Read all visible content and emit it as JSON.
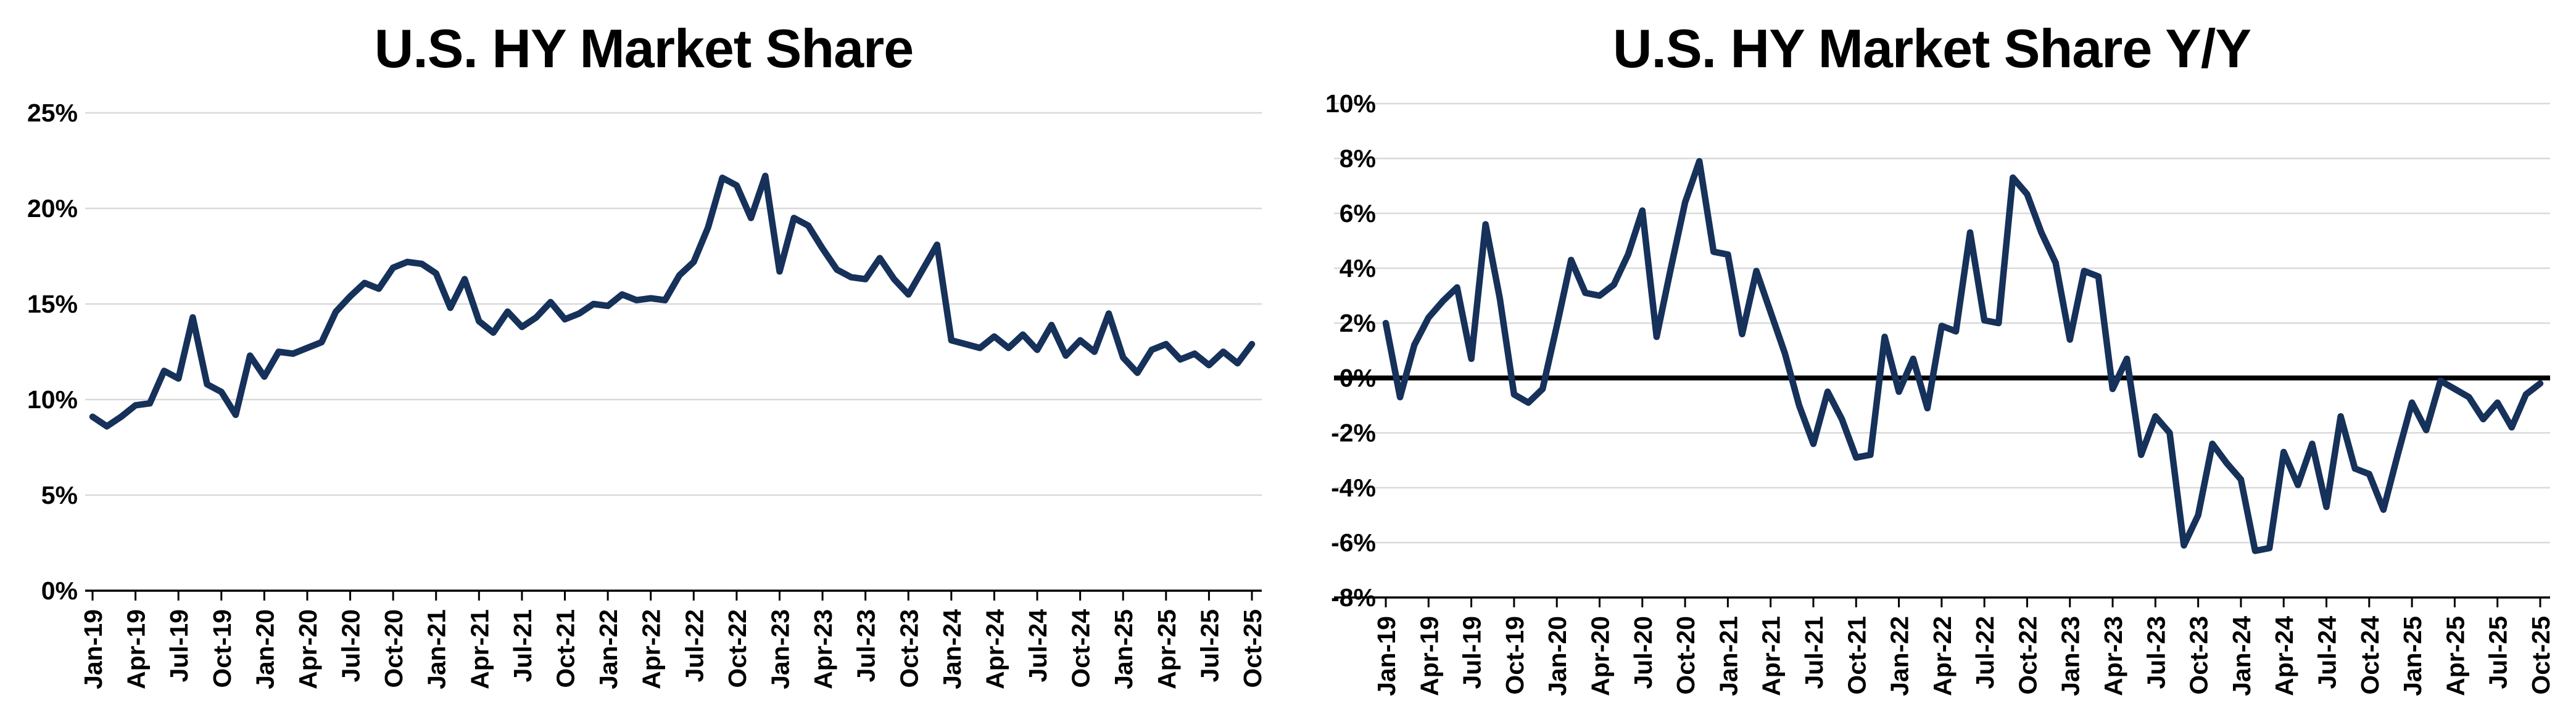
{
  "page": {
    "background": "#ffffff"
  },
  "chart_data": [
    {
      "type": "line",
      "title": "U.S. HY Market Share",
      "xlabel": "",
      "ylabel": "",
      "ylim": [
        0,
        25
      ],
      "y_tick_labels": [
        "0%",
        "5%",
        "10%",
        "15%",
        "20%",
        "25%"
      ],
      "y_tick_values": [
        0,
        5,
        10,
        15,
        20,
        25
      ],
      "grid": true,
      "legend": "none",
      "line_color": "#16315A",
      "grid_color": "#D9D9D9",
      "axis_color": "#000000",
      "x_tick_labels": [
        "Jan-19",
        "Apr-19",
        "Jul-19",
        "Oct-19",
        "Jan-20",
        "Apr-20",
        "Jul-20",
        "Oct-20",
        "Jan-21",
        "Apr-21",
        "Jul-21",
        "Oct-21",
        "Jan-22",
        "Apr-22",
        "Jul-22",
        "Oct-22",
        "Jan-23",
        "Apr-23",
        "Jul-23",
        "Oct-23",
        "Jan-24",
        "Apr-24",
        "Jul-24",
        "Oct-24",
        "Jan-25",
        "Apr-25",
        "Jul-25",
        "Oct-25"
      ],
      "categories": [
        "Jan-19",
        "Feb-19",
        "Mar-19",
        "Apr-19",
        "May-19",
        "Jun-19",
        "Jul-19",
        "Aug-19",
        "Sep-19",
        "Oct-19",
        "Nov-19",
        "Dec-19",
        "Jan-20",
        "Feb-20",
        "Mar-20",
        "Apr-20",
        "May-20",
        "Jun-20",
        "Jul-20",
        "Aug-20",
        "Sep-20",
        "Oct-20",
        "Nov-20",
        "Dec-20",
        "Jan-21",
        "Feb-21",
        "Mar-21",
        "Apr-21",
        "May-21",
        "Jun-21",
        "Jul-21",
        "Aug-21",
        "Sep-21",
        "Oct-21",
        "Nov-21",
        "Dec-21",
        "Jan-22",
        "Feb-22",
        "Mar-22",
        "Apr-22",
        "May-22",
        "Jun-22",
        "Jul-22",
        "Aug-22",
        "Sep-22",
        "Oct-22",
        "Nov-22",
        "Dec-22",
        "Jan-23",
        "Feb-23",
        "Mar-23",
        "Apr-23",
        "May-23",
        "Jun-23",
        "Jul-23",
        "Aug-23",
        "Sep-23",
        "Oct-23",
        "Nov-23",
        "Dec-23",
        "Jan-24",
        "Feb-24",
        "Mar-24",
        "Apr-24",
        "May-24",
        "Jun-24",
        "Jul-24",
        "Aug-24",
        "Sep-24",
        "Oct-24",
        "Nov-24",
        "Dec-24",
        "Jan-25",
        "Feb-25",
        "Mar-25",
        "Apr-25",
        "May-25",
        "Jun-25",
        "Jul-25",
        "Aug-25",
        "Sep-25",
        "Oct-25"
      ],
      "values": [
        9.1,
        8.6,
        9.1,
        9.7,
        9.8,
        11.5,
        11.1,
        14.3,
        10.8,
        10.4,
        9.2,
        12.3,
        11.2,
        12.5,
        12.4,
        12.7,
        13.0,
        14.6,
        15.4,
        16.1,
        15.8,
        16.9,
        17.2,
        17.1,
        16.6,
        14.8,
        16.3,
        14.1,
        13.5,
        14.6,
        13.8,
        14.3,
        15.1,
        14.2,
        14.5,
        15.0,
        14.9,
        15.5,
        15.2,
        15.3,
        15.2,
        16.5,
        17.2,
        19.0,
        21.6,
        21.2,
        19.5,
        21.7,
        16.7,
        19.5,
        19.1,
        17.9,
        16.8,
        16.4,
        16.3,
        17.4,
        16.3,
        15.5,
        16.8,
        18.1,
        13.1,
        12.9,
        12.7,
        13.3,
        12.7,
        13.4,
        12.6,
        13.9,
        12.3,
        13.1,
        12.5,
        14.5,
        12.2,
        11.4,
        12.6,
        12.9,
        12.1,
        12.4,
        11.8,
        12.5,
        11.9,
        12.9
      ]
    },
    {
      "type": "line",
      "title": "U.S. HY Market Share Y/Y",
      "xlabel": "",
      "ylabel": "",
      "ylim": [
        -8,
        10
      ],
      "y_tick_labels": [
        "-8%",
        "-6%",
        "-4%",
        "-2%",
        "0%",
        "2%",
        "4%",
        "6%",
        "8%",
        "10%"
      ],
      "y_tick_values": [
        -8,
        -6,
        -4,
        -2,
        0,
        2,
        4,
        6,
        8,
        10
      ],
      "grid": true,
      "legend": "none",
      "zero_line": true,
      "line_color": "#16315A",
      "grid_color": "#D9D9D9",
      "axis_color": "#000000",
      "x_tick_labels": [
        "Jan-19",
        "Apr-19",
        "Jul-19",
        "Oct-19",
        "Jan-20",
        "Apr-20",
        "Jul-20",
        "Oct-20",
        "Jan-21",
        "Apr-21",
        "Jul-21",
        "Oct-21",
        "Jan-22",
        "Apr-22",
        "Jul-22",
        "Oct-22",
        "Jan-23",
        "Apr-23",
        "Jul-23",
        "Oct-23",
        "Jan-24",
        "Apr-24",
        "Jul-24",
        "Oct-24",
        "Jan-25",
        "Apr-25",
        "Jul-25",
        "Oct-25"
      ],
      "categories": [
        "Jan-19",
        "Feb-19",
        "Mar-19",
        "Apr-19",
        "May-19",
        "Jun-19",
        "Jul-19",
        "Aug-19",
        "Sep-19",
        "Oct-19",
        "Nov-19",
        "Dec-19",
        "Jan-20",
        "Feb-20",
        "Mar-20",
        "Apr-20",
        "May-20",
        "Jun-20",
        "Jul-20",
        "Aug-20",
        "Sep-20",
        "Oct-20",
        "Nov-20",
        "Dec-20",
        "Jan-21",
        "Feb-21",
        "Mar-21",
        "Apr-21",
        "May-21",
        "Jun-21",
        "Jul-21",
        "Aug-21",
        "Sep-21",
        "Oct-21",
        "Nov-21",
        "Dec-21",
        "Jan-22",
        "Feb-22",
        "Mar-22",
        "Apr-22",
        "May-22",
        "Jun-22",
        "Jul-22",
        "Aug-22",
        "Sep-22",
        "Oct-22",
        "Nov-22",
        "Dec-22",
        "Jan-23",
        "Feb-23",
        "Mar-23",
        "Apr-23",
        "May-23",
        "Jun-23",
        "Jul-23",
        "Aug-23",
        "Sep-23",
        "Oct-23",
        "Nov-23",
        "Dec-23",
        "Jan-24",
        "Feb-24",
        "Mar-24",
        "Apr-24",
        "May-24",
        "Jun-24",
        "Jul-24",
        "Aug-24",
        "Sep-24",
        "Oct-24",
        "Nov-24",
        "Dec-24",
        "Jan-25",
        "Feb-25",
        "Mar-25",
        "Apr-25",
        "May-25",
        "Jun-25",
        "Jul-25",
        "Aug-25",
        "Sep-25",
        "Oct-25"
      ],
      "values": [
        2.0,
        -0.7,
        1.2,
        2.2,
        2.8,
        3.3,
        0.7,
        5.6,
        2.9,
        -0.6,
        -0.9,
        -0.4,
        1.9,
        4.3,
        3.1,
        3.0,
        3.4,
        4.5,
        6.1,
        1.5,
        4.0,
        6.4,
        7.9,
        4.6,
        4.5,
        1.6,
        3.9,
        2.4,
        0.9,
        -1.0,
        -2.4,
        -0.5,
        -1.5,
        -2.9,
        -2.8,
        1.5,
        -0.5,
        0.7,
        -1.1,
        1.9,
        1.7,
        5.3,
        2.1,
        2.0,
        7.3,
        6.7,
        5.3,
        4.2,
        1.4,
        3.9,
        3.7,
        -0.4,
        0.7,
        -2.8,
        -1.4,
        -2.0,
        -6.1,
        -5.0,
        -2.4,
        -3.1,
        -3.7,
        -6.3,
        -6.2,
        -2.7,
        -3.9,
        -2.4,
        -4.7,
        -1.4,
        -3.3,
        -3.5,
        -4.8,
        -2.8,
        -0.9,
        -1.9,
        -0.1,
        -0.4,
        -0.7,
        -1.5,
        -0.9,
        -1.8,
        -0.6,
        -0.2
      ]
    }
  ]
}
